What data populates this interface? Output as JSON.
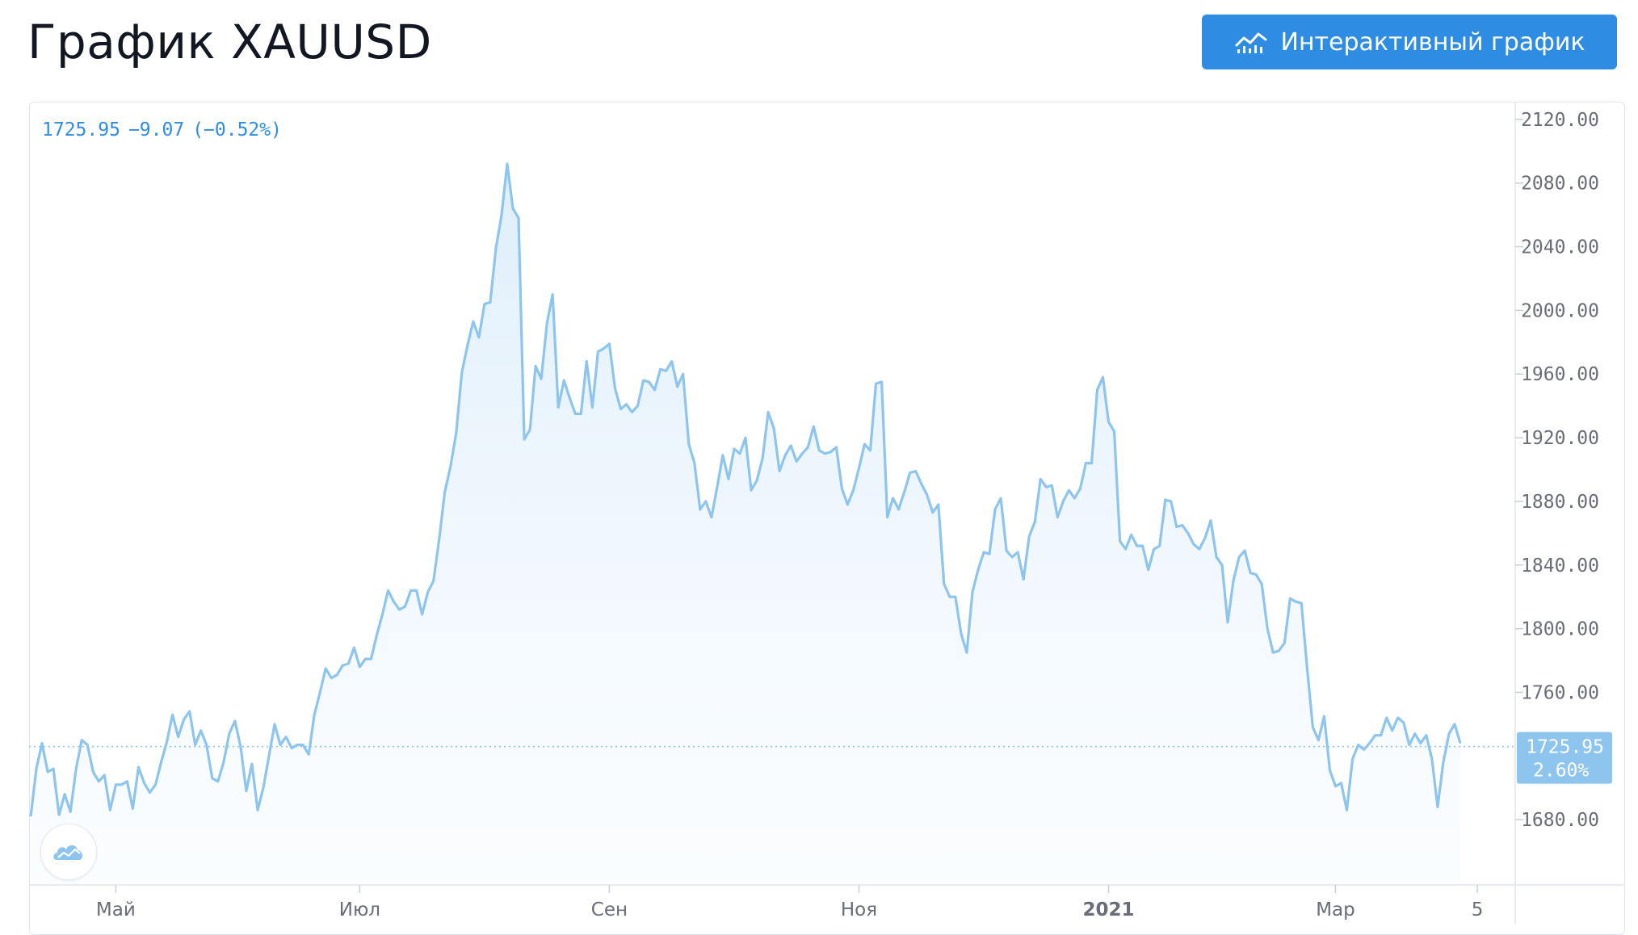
{
  "header": {
    "title": "График XAUUSD",
    "button_label": "Интерактивный график"
  },
  "legend": {
    "price": "1725.95",
    "change": "−9.07",
    "change_pct": "(−0.52%)"
  },
  "last_price_badge": {
    "price": "1725.95",
    "percent": "2.60%"
  },
  "colors": {
    "accent": "#2e8de3",
    "line": "#8ec5ee",
    "badge": "#8ec5ee",
    "axis_text": "#6a6d78"
  },
  "icons": {
    "button_icon": "chart-bars-icon",
    "logo": "tradingview-cloud-icon"
  },
  "chart_data": {
    "type": "area",
    "title": "",
    "xlabel": "",
    "ylabel": "",
    "ylim": [
      1640,
      2125
    ],
    "y_ticks": [
      "2120.00",
      "2080.00",
      "2040.00",
      "2000.00",
      "1960.00",
      "1920.00",
      "1880.00",
      "1840.00",
      "1800.00",
      "1760.00",
      "1680.00"
    ],
    "x_ticks": [
      "Май",
      "Июл",
      "Сен",
      "Ноя",
      "2021",
      "Мар",
      "5"
    ],
    "x_tick_index": [
      15,
      58,
      102,
      146,
      190,
      230,
      255
    ],
    "grid": false,
    "last_value": 1725.95,
    "series": [
      {
        "values": [
          1682,
          1712,
          1728,
          1710,
          1712,
          1683,
          1696,
          1685,
          1712,
          1730,
          1727,
          1710,
          1704,
          1708,
          1686,
          1702,
          1702,
          1704,
          1687,
          1713,
          1703,
          1697,
          1702,
          1716,
          1729,
          1746,
          1732,
          1743,
          1748,
          1727,
          1736,
          1727,
          1706,
          1704,
          1716,
          1734,
          1742,
          1726,
          1698,
          1715,
          1686,
          1700,
          1720,
          1740,
          1727,
          1732,
          1725,
          1727,
          1727,
          1721,
          1746,
          1760,
          1775,
          1769,
          1771,
          1777,
          1778,
          1788,
          1776,
          1781,
          1781,
          1796,
          1809,
          1824,
          1817,
          1812,
          1814,
          1824,
          1824,
          1809,
          1823,
          1830,
          1856,
          1886,
          1902,
          1923,
          1961,
          1978,
          1993,
          1983,
          2004,
          2005,
          2039,
          2060,
          2092,
          2064,
          2058,
          1919,
          1925,
          1965,
          1957,
          1992,
          2010,
          1939,
          1956,
          1945,
          1935,
          1935,
          1968,
          1939,
          1974,
          1976,
          1979,
          1951,
          1938,
          1941,
          1936,
          1940,
          1956,
          1955,
          1950,
          1963,
          1962,
          1968,
          1952,
          1960,
          1916,
          1904,
          1875,
          1880,
          1870,
          1889,
          1909,
          1894,
          1913,
          1910,
          1920,
          1887,
          1893,
          1907,
          1936,
          1926,
          1899,
          1909,
          1915,
          1905,
          1910,
          1914,
          1927,
          1912,
          1910,
          1911,
          1914,
          1888,
          1878,
          1887,
          1901,
          1916,
          1912,
          1954,
          1955,
          1870,
          1882,
          1875,
          1886,
          1898,
          1899,
          1891,
          1884,
          1873,
          1878,
          1828,
          1820,
          1820,
          1797,
          1785,
          1823,
          1837,
          1848,
          1847,
          1875,
          1882,
          1849,
          1845,
          1848,
          1831,
          1858,
          1867,
          1894,
          1889,
          1890,
          1870,
          1880,
          1887,
          1882,
          1888,
          1904,
          1904,
          1950,
          1958,
          1930,
          1924,
          1855,
          1850,
          1859,
          1852,
          1852,
          1837,
          1850,
          1852,
          1881,
          1880,
          1864,
          1865,
          1860,
          1853,
          1850,
          1857,
          1868,
          1845,
          1840,
          1804,
          1830,
          1845,
          1849,
          1835,
          1834,
          1828,
          1800,
          1785,
          1786,
          1791,
          1819,
          1817,
          1816,
          1775,
          1738,
          1730,
          1745,
          1711,
          1701,
          1703,
          1686,
          1718,
          1727,
          1724,
          1728,
          1733,
          1733,
          1744,
          1736,
          1744,
          1741,
          1727,
          1734,
          1728,
          1733,
          1718,
          1688,
          1716,
          1734,
          1740,
          1728
        ]
      }
    ]
  }
}
